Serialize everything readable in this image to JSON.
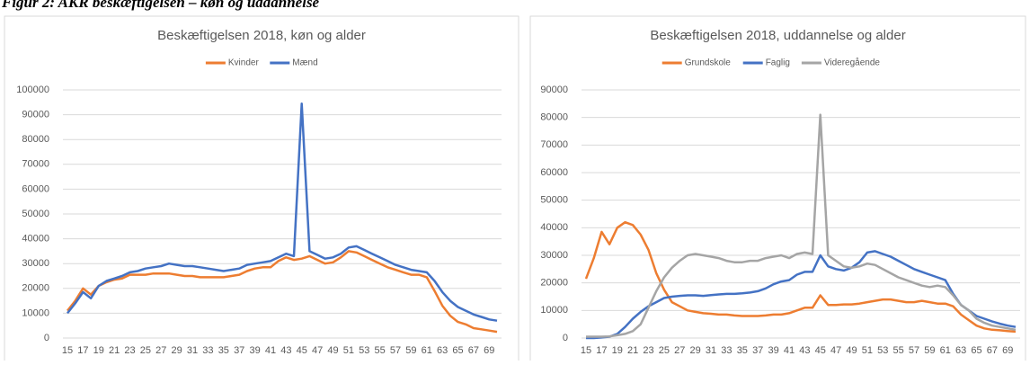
{
  "caption": "Figur 2: AKR beskæftigelsen – køn og uddannelse",
  "chart_data": [
    {
      "type": "line",
      "title": "Beskæftigelsen 2018, køn og alder",
      "legend": "top",
      "grid": true,
      "categories": [
        "15",
        null,
        "17",
        null,
        "19",
        null,
        "21",
        null,
        "23",
        null,
        "25",
        null,
        "27",
        null,
        "29",
        null,
        "31",
        null,
        "33",
        null,
        "35",
        null,
        "37",
        null,
        "39",
        null,
        "41",
        null,
        "43",
        null,
        "45",
        null,
        "47",
        null,
        "49",
        null,
        "51",
        null,
        "53",
        null,
        "55",
        null,
        "57",
        null,
        "59",
        null,
        "61",
        null,
        "63",
        null,
        "65",
        null,
        "67",
        null,
        "69",
        null
      ],
      "ylim": [
        0,
        100000
      ],
      "yticks": [
        0,
        10000,
        20000,
        30000,
        40000,
        50000,
        60000,
        70000,
        80000,
        90000,
        100000
      ],
      "series": [
        {
          "name": "Kvinder",
          "color": "#ed7d31",
          "values": [
            11000,
            15000,
            20000,
            17500,
            21000,
            22500,
            23500,
            24000,
            25500,
            25500,
            25500,
            26000,
            26000,
            26000,
            25500,
            25000,
            25000,
            24500,
            24500,
            24500,
            24500,
            25000,
            25500,
            27000,
            28000,
            28500,
            28500,
            31000,
            32500,
            31500,
            32000,
            33000,
            31500,
            30000,
            30500,
            32500,
            35000,
            34500,
            33000,
            31500,
            30000,
            28500,
            27500,
            26500,
            25500,
            25500,
            24500,
            19000,
            13000,
            9000,
            6500,
            5500,
            4000,
            3500,
            3000,
            2500
          ]
        },
        {
          "name": "Mænd",
          "color": "#4472c4",
          "values": [
            10000,
            14000,
            18500,
            16000,
            21000,
            23000,
            24000,
            25000,
            26500,
            27000,
            28000,
            28500,
            29000,
            30000,
            29500,
            29000,
            29000,
            28500,
            28000,
            27500,
            27000,
            27500,
            28000,
            29500,
            30000,
            30500,
            31000,
            32500,
            34000,
            33000,
            94500,
            35000,
            33500,
            32000,
            32500,
            34000,
            36500,
            37000,
            35500,
            34000,
            32500,
            31000,
            29500,
            28500,
            27500,
            27000,
            26500,
            23000,
            18500,
            15000,
            12500,
            11000,
            9500,
            8500,
            7500,
            7000
          ]
        }
      ]
    },
    {
      "type": "line",
      "title": "Beskæftigelsen 2018, uddannelse og alder",
      "legend": "top",
      "grid": true,
      "categories": [
        "15",
        null,
        "17",
        null,
        "19",
        null,
        "21",
        null,
        "23",
        null,
        "25",
        null,
        "27",
        null,
        "29",
        null,
        "31",
        null,
        "33",
        null,
        "35",
        null,
        "37",
        null,
        "39",
        null,
        "41",
        null,
        "43",
        null,
        "45",
        null,
        "47",
        null,
        "49",
        null,
        "51",
        null,
        "53",
        null,
        "55",
        null,
        "57",
        null,
        "59",
        null,
        "61",
        null,
        "63",
        null,
        "65",
        null,
        "67",
        null,
        "69",
        null
      ],
      "ylim": [
        0,
        90000
      ],
      "yticks": [
        0,
        10000,
        20000,
        30000,
        40000,
        50000,
        60000,
        70000,
        80000,
        90000
      ],
      "series": [
        {
          "name": "Grundskole",
          "color": "#ed7d31",
          "values": [
            21500,
            29000,
            38500,
            34000,
            40000,
            42000,
            41000,
            37500,
            32000,
            23500,
            17500,
            13000,
            11500,
            10000,
            9500,
            9000,
            8800,
            8500,
            8500,
            8200,
            8000,
            8000,
            8000,
            8200,
            8500,
            8500,
            9000,
            10000,
            11000,
            11000,
            15500,
            12000,
            12000,
            12200,
            12200,
            12500,
            13000,
            13500,
            14000,
            14000,
            13500,
            13000,
            13000,
            13500,
            13000,
            12500,
            12500,
            11500,
            8500,
            6500,
            4500,
            3500,
            3000,
            2800,
            2500,
            2300
          ]
        },
        {
          "name": "Faglig",
          "color": "#4472c4",
          "values": [
            0,
            0,
            200,
            500,
            1500,
            4000,
            7000,
            9500,
            11500,
            13000,
            14500,
            15000,
            15300,
            15500,
            15500,
            15300,
            15600,
            15800,
            16000,
            16000,
            16200,
            16500,
            17000,
            18000,
            19500,
            20500,
            21000,
            23000,
            24000,
            24000,
            30000,
            26000,
            25000,
            24500,
            25500,
            27500,
            31000,
            31500,
            30500,
            29500,
            28000,
            26500,
            25000,
            24000,
            23000,
            22000,
            21000,
            16000,
            12000,
            10000,
            8000,
            7000,
            6000,
            5200,
            4500,
            4000
          ]
        },
        {
          "name": "Videregående",
          "color": "#a5a5a5",
          "values": [
            500,
            500,
            500,
            600,
            1000,
            1500,
            2500,
            5000,
            11000,
            17000,
            22000,
            25500,
            28000,
            30000,
            30500,
            30000,
            29500,
            29000,
            28000,
            27500,
            27500,
            28000,
            28000,
            29000,
            29500,
            30000,
            29000,
            30500,
            31000,
            30500,
            81000,
            30000,
            28000,
            26000,
            25500,
            26000,
            27000,
            26500,
            25000,
            23500,
            22000,
            21000,
            20000,
            19000,
            18500,
            19000,
            18500,
            15500,
            12000,
            10000,
            7000,
            5500,
            4500,
            4000,
            3500,
            3000
          ]
        }
      ]
    }
  ]
}
